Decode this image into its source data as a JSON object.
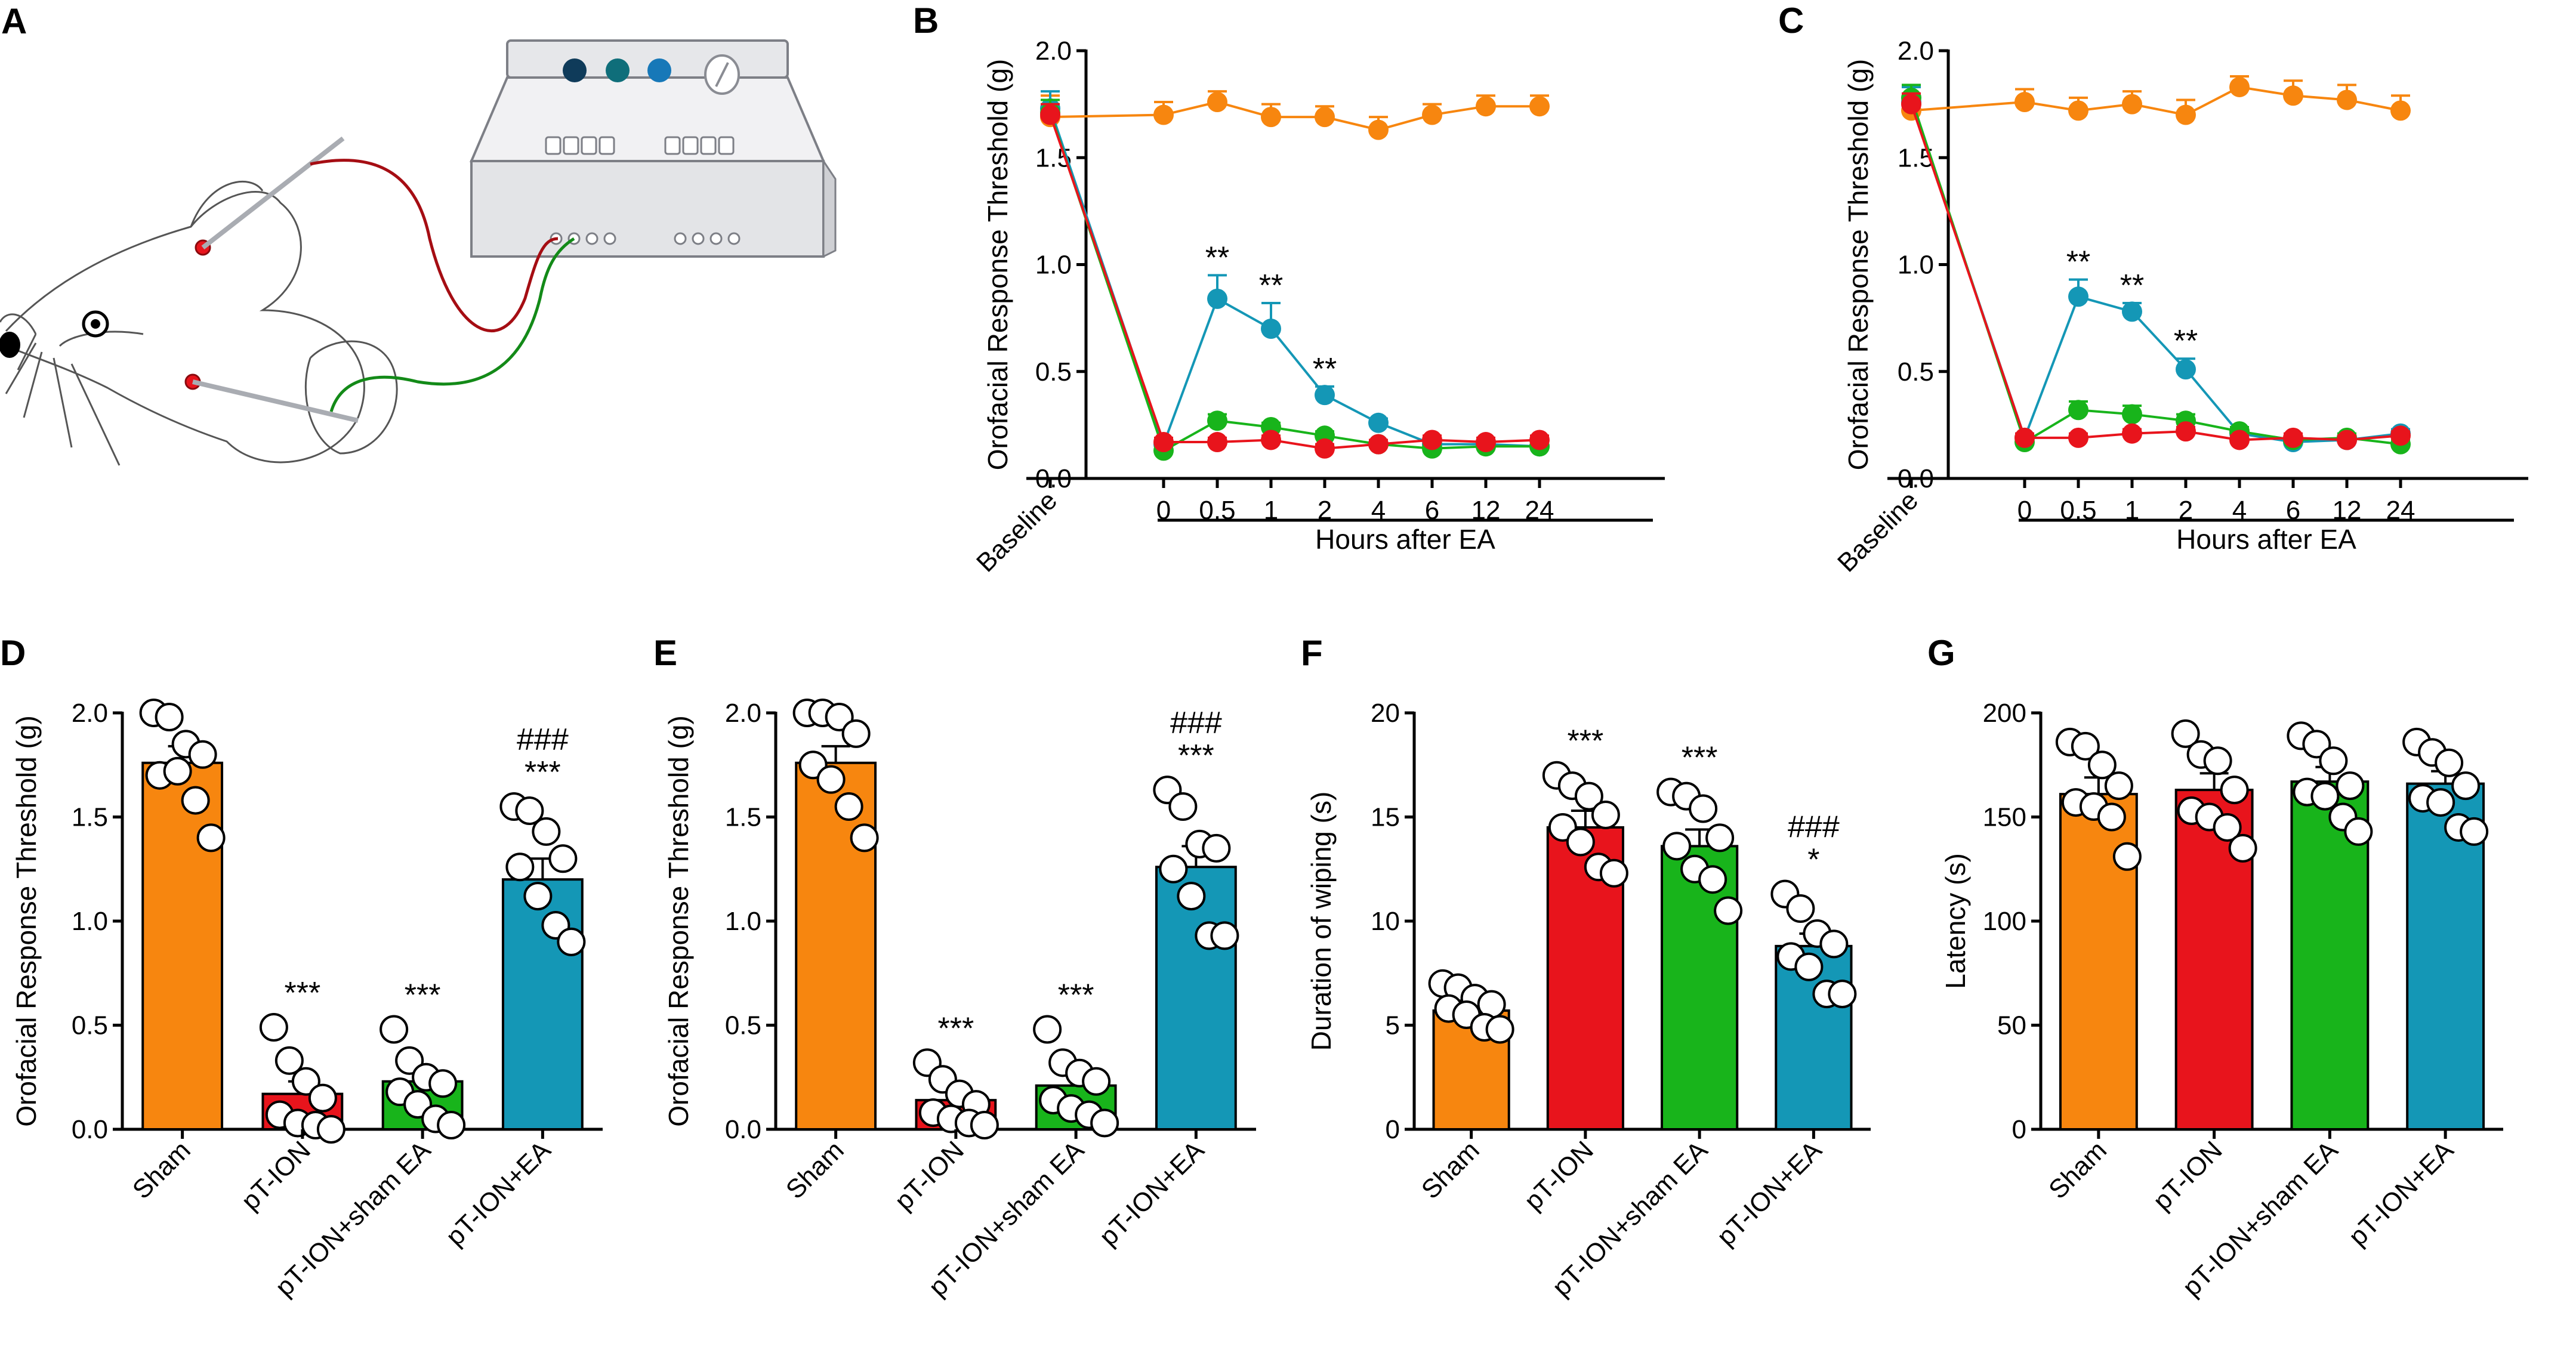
{
  "panels": {
    "A": {
      "letter": "A"
    }
  },
  "colors": {
    "orange": "#f7860f",
    "red": "#e8141c",
    "green": "#18b41b",
    "teal": "#1497b6",
    "black": "#000000"
  },
  "icons": [
    "rat-drawing-icon",
    "ea-stimulator-icon",
    "needle-electrode-icon"
  ],
  "chart_data": [
    {
      "id": "B",
      "letter": "B",
      "type": "line",
      "ylabel": "Orofacial Response Threshold (g)",
      "xlabel": "Hours after EA",
      "x": [
        "Baseline",
        "0",
        "0.5",
        "1",
        "2",
        "4",
        "6",
        "12",
        "24"
      ],
      "yticks": [
        "0.0",
        "0.5",
        "1.0",
        "1.5",
        "2.0"
      ],
      "ylim": [
        0,
        2.0
      ],
      "series": [
        {
          "name": "Sham",
          "color": "orange",
          "values": [
            1.69,
            1.7,
            1.76,
            1.69,
            1.69,
            1.63,
            1.7,
            1.74,
            1.74
          ],
          "errors": [
            0.1,
            0.06,
            0.05,
            0.06,
            0.05,
            0.06,
            0.05,
            0.05,
            0.05
          ]
        },
        {
          "name": "pT-ION+EA",
          "color": "teal",
          "values": [
            1.73,
            0.16,
            0.84,
            0.7,
            0.39,
            0.26,
            0.16,
            0.16,
            0.15
          ],
          "errors": [
            0.08,
            0.02,
            0.11,
            0.12,
            0.04,
            0.02,
            0.02,
            0.02,
            0.02
          ]
        },
        {
          "name": "pT-ION+sham EA",
          "color": "green",
          "values": [
            1.71,
            0.13,
            0.27,
            0.24,
            0.2,
            0.16,
            0.14,
            0.15,
            0.15
          ],
          "errors": [
            0.06,
            0.02,
            0.03,
            0.02,
            0.02,
            0.02,
            0.02,
            0.02,
            0.02
          ]
        },
        {
          "name": "pT-ION",
          "color": "red",
          "values": [
            1.7,
            0.17,
            0.17,
            0.18,
            0.14,
            0.16,
            0.18,
            0.17,
            0.18
          ],
          "errors": [
            0.05,
            0.02,
            0.02,
            0.02,
            0.02,
            0.02,
            0.02,
            0.02,
            0.02
          ]
        }
      ],
      "annotations": [
        {
          "x": "0.5",
          "text": "**"
        },
        {
          "x": "1",
          "text": "**"
        },
        {
          "x": "2",
          "text": "**"
        }
      ]
    },
    {
      "id": "C",
      "letter": "C",
      "type": "line",
      "ylabel": "Orofacial Response Threshold (g)",
      "xlabel": "Hours after EA",
      "x": [
        "Baseline",
        "0",
        "0.5",
        "1",
        "2",
        "4",
        "6",
        "12",
        "24"
      ],
      "yticks": [
        "0.0",
        "0.5",
        "1.0",
        "1.5",
        "2.0"
      ],
      "ylim": [
        0,
        2.0
      ],
      "series": [
        {
          "name": "Sham",
          "color": "orange",
          "values": [
            1.72,
            1.76,
            1.72,
            1.75,
            1.7,
            1.83,
            1.79,
            1.77,
            1.72
          ],
          "errors": [
            0.05,
            0.06,
            0.06,
            0.06,
            0.07,
            0.05,
            0.07,
            0.07,
            0.07
          ]
        },
        {
          "name": "pT-ION+EA",
          "color": "teal",
          "values": [
            1.76,
            0.19,
            0.85,
            0.78,
            0.51,
            0.21,
            0.17,
            0.18,
            0.21
          ],
          "errors": [
            0.07,
            0.02,
            0.08,
            0.04,
            0.05,
            0.02,
            0.02,
            0.02,
            0.02
          ]
        },
        {
          "name": "pT-ION+sham EA",
          "color": "green",
          "values": [
            1.78,
            0.17,
            0.32,
            0.3,
            0.27,
            0.22,
            0.18,
            0.19,
            0.16
          ],
          "errors": [
            0.06,
            0.02,
            0.04,
            0.04,
            0.03,
            0.02,
            0.02,
            0.02,
            0.02
          ]
        },
        {
          "name": "pT-ION",
          "color": "red",
          "values": [
            1.75,
            0.19,
            0.19,
            0.21,
            0.22,
            0.18,
            0.19,
            0.18,
            0.2
          ],
          "errors": [
            0.05,
            0.02,
            0.02,
            0.02,
            0.02,
            0.02,
            0.02,
            0.02,
            0.02
          ]
        }
      ],
      "annotations": [
        {
          "x": "0.5",
          "text": "**"
        },
        {
          "x": "1",
          "text": "**"
        },
        {
          "x": "2",
          "text": "**"
        }
      ]
    },
    {
      "id": "D",
      "letter": "D",
      "type": "bar",
      "ylabel": "Orofacial Response Threshold (g)",
      "categories": [
        "Sham",
        "pT-ION",
        "pT-ION+sham EA",
        "pT-ION+EA"
      ],
      "colors": [
        "orange",
        "red",
        "green",
        "teal"
      ],
      "values": [
        1.76,
        0.17,
        0.23,
        1.2
      ],
      "errors": [
        0.08,
        0.06,
        0.06,
        0.1
      ],
      "ylim": [
        0,
        2.0
      ],
      "yticks": [
        "0.0",
        "0.5",
        "1.0",
        "1.5",
        "2.0"
      ],
      "points": [
        [
          2.0,
          1.98,
          1.85,
          1.8,
          1.7,
          1.72,
          1.58,
          1.4
        ],
        [
          0.49,
          0.33,
          0.23,
          0.15,
          0.07,
          0.03,
          0.02,
          0.0
        ],
        [
          0.48,
          0.33,
          0.25,
          0.22,
          0.18,
          0.12,
          0.05,
          0.02
        ],
        [
          1.55,
          1.53,
          1.43,
          1.3,
          1.26,
          1.12,
          0.98,
          0.9
        ]
      ],
      "annotations": [
        {
          "category": "pT-ION",
          "lines": [
            "***"
          ]
        },
        {
          "category": "pT-ION+sham EA",
          "lines": [
            "***"
          ]
        },
        {
          "category": "pT-ION+EA",
          "lines": [
            "###",
            "***"
          ]
        }
      ]
    },
    {
      "id": "E",
      "letter": "E",
      "type": "bar",
      "ylabel": "Orofacial Response Threshold (g)",
      "categories": [
        "Sham",
        "pT-ION",
        "pT-ION+sham EA",
        "pT-ION+EA"
      ],
      "colors": [
        "orange",
        "red",
        "green",
        "teal"
      ],
      "values": [
        1.76,
        0.14,
        0.21,
        1.26
      ],
      "errors": [
        0.08,
        0.04,
        0.06,
        0.1
      ],
      "ylim": [
        0,
        2.0
      ],
      "yticks": [
        "0.0",
        "0.5",
        "1.0",
        "1.5",
        "2.0"
      ],
      "points": [
        [
          2.0,
          2.0,
          1.98,
          1.9,
          1.75,
          1.68,
          1.55,
          1.4
        ],
        [
          0.32,
          0.24,
          0.17,
          0.12,
          0.08,
          0.05,
          0.03,
          0.02
        ],
        [
          0.48,
          0.32,
          0.27,
          0.23,
          0.14,
          0.1,
          0.07,
          0.03
        ],
        [
          1.63,
          1.55,
          1.37,
          1.35,
          1.25,
          1.12,
          0.93,
          0.93
        ]
      ],
      "annotations": [
        {
          "category": "pT-ION",
          "lines": [
            "***"
          ]
        },
        {
          "category": "pT-ION+sham EA",
          "lines": [
            "***"
          ]
        },
        {
          "category": "pT-ION+EA",
          "lines": [
            "###",
            "***"
          ]
        }
      ]
    },
    {
      "id": "F",
      "letter": "F",
      "type": "bar",
      "ylabel": "Duration of wiping (s)",
      "categories": [
        "Sham",
        "pT-ION",
        "pT-ION+sham EA",
        "pT-ION+EA"
      ],
      "colors": [
        "orange",
        "red",
        "green",
        "teal"
      ],
      "values": [
        5.7,
        14.5,
        13.6,
        8.8
      ],
      "errors": [
        0.5,
        0.8,
        0.8,
        0.6
      ],
      "ylim": [
        0,
        20
      ],
      "yticks": [
        "0",
        "5",
        "10",
        "15",
        "20"
      ],
      "points": [
        [
          7.0,
          6.8,
          6.3,
          6.0,
          5.8,
          5.5,
          4.9,
          4.8
        ],
        [
          17.0,
          16.5,
          16.0,
          15.1,
          14.5,
          13.8,
          12.6,
          12.3
        ],
        [
          16.2,
          16.0,
          15.4,
          14.0,
          13.6,
          12.5,
          12.0,
          10.5
        ],
        [
          11.3,
          10.6,
          9.4,
          8.9,
          8.3,
          7.8,
          6.5,
          6.5
        ]
      ],
      "annotations": [
        {
          "category": "pT-ION",
          "lines": [
            "***"
          ]
        },
        {
          "category": "pT-ION+sham EA",
          "lines": [
            "***"
          ]
        },
        {
          "category": "pT-ION+EA",
          "lines": [
            "###",
            "*"
          ]
        }
      ]
    },
    {
      "id": "G",
      "letter": "G",
      "type": "bar",
      "ylabel": "Latency (s)",
      "categories": [
        "Sham",
        "pT-ION",
        "pT-ION+sham EA",
        "pT-ION+EA"
      ],
      "colors": [
        "orange",
        "red",
        "green",
        "teal"
      ],
      "values": [
        161,
        163,
        167,
        166
      ],
      "errors": [
        8,
        8,
        7,
        6
      ],
      "ylim": [
        0,
        200
      ],
      "yticks": [
        "0",
        "50",
        "100",
        "150",
        "200"
      ],
      "points": [
        [
          186,
          184,
          175,
          165,
          157,
          155,
          150,
          131
        ],
        [
          190,
          180,
          177,
          163,
          153,
          150,
          145,
          135
        ],
        [
          189,
          185,
          177,
          165,
          162,
          160,
          150,
          143
        ],
        [
          186,
          181,
          176,
          165,
          159,
          157,
          145,
          143
        ]
      ],
      "annotations": []
    }
  ]
}
